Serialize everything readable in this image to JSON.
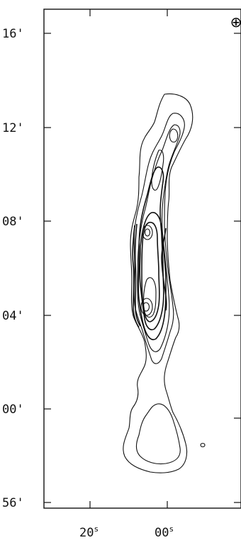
{
  "plot": {
    "y_ticks": [
      {
        "label": "16'"
      },
      {
        "label": "12'"
      },
      {
        "label": "08'"
      },
      {
        "label": "04'"
      },
      {
        "label": "00'"
      },
      {
        "label": "56'"
      }
    ],
    "x_ticks": [
      {
        "label": "20",
        "sup": "s"
      },
      {
        "label": "00",
        "sup": "s"
      }
    ],
    "beam_symbol": "⊕"
  }
}
